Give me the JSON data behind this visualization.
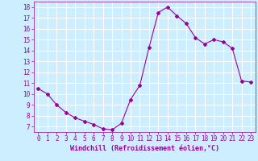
{
  "x": [
    0,
    1,
    2,
    3,
    4,
    5,
    6,
    7,
    8,
    9,
    10,
    11,
    12,
    13,
    14,
    15,
    16,
    17,
    18,
    19,
    20,
    21,
    22,
    23
  ],
  "y": [
    10.5,
    10.0,
    9.0,
    8.3,
    7.8,
    7.5,
    7.2,
    6.8,
    6.7,
    7.3,
    9.5,
    10.8,
    14.3,
    17.5,
    18.0,
    17.2,
    16.5,
    15.2,
    14.6,
    15.0,
    14.8,
    14.2,
    11.2,
    11.1
  ],
  "line_color": "#990099",
  "marker": "D",
  "marker_size": 2,
  "bg_color": "#cceeff",
  "grid_color": "#ffffff",
  "xlabel": "Windchill (Refroidissement éolien,°C)",
  "xlabel_color": "#990099",
  "tick_color": "#990099",
  "label_color": "#990099",
  "ylim": [
    6.5,
    18.5
  ],
  "xlim": [
    -0.5,
    23.5
  ],
  "yticks": [
    7,
    8,
    9,
    10,
    11,
    12,
    13,
    14,
    15,
    16,
    17,
    18
  ],
  "xticks": [
    0,
    1,
    2,
    3,
    4,
    5,
    6,
    7,
    8,
    9,
    10,
    11,
    12,
    13,
    14,
    15,
    16,
    17,
    18,
    19,
    20,
    21,
    22,
    23
  ],
  "tick_fontsize": 5.5,
  "xlabel_fontsize": 6.0
}
